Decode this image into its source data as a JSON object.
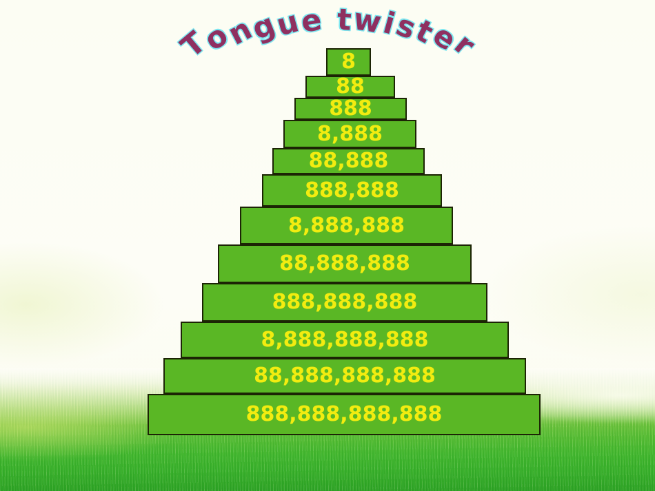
{
  "slide": {
    "title": "Tongue twister",
    "pyramid_rows": [
      "8",
      "88",
      "888",
      "8,888",
      "88,888",
      "888,888",
      "8,888,888",
      "88,888,888",
      "888,888,888",
      "8,888,888,888",
      "88,888,888,888",
      "888,888,888,888"
    ]
  },
  "colors": {
    "sky_white": "#fdfdf5",
    "grass_green": "#3db52e",
    "block_green": "#5ab725",
    "block_border": "#1c2405",
    "number_yellow": "#f2ec10",
    "title_fill": "#8f3060",
    "title_outline": "#7de7f0"
  }
}
